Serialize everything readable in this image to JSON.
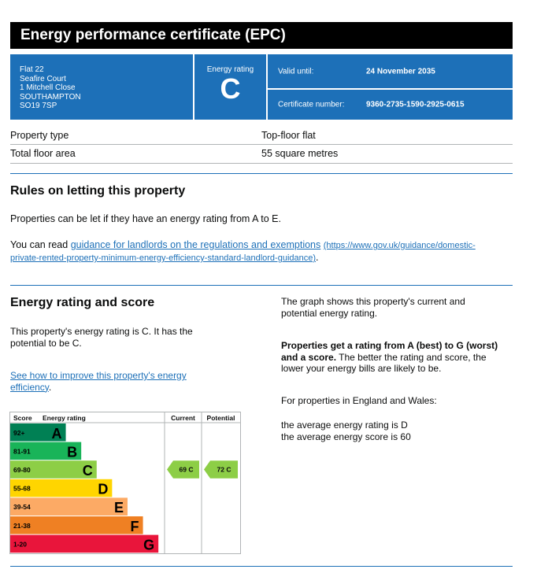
{
  "header": {
    "title": "Energy performance certificate (EPC)"
  },
  "address": {
    "lines": [
      "Flat 22",
      "Seafire Court",
      "1 Mitchell Close",
      "SOUTHAMPTON",
      "SO19 7SP"
    ]
  },
  "rating": {
    "label": "Energy rating",
    "value": "C"
  },
  "validity": {
    "label": "Valid until:",
    "value": "24 November 2035"
  },
  "certificate": {
    "label": "Certificate number:",
    "value": "9360-2735-1590-2925-0615"
  },
  "property": {
    "type_label": "Property type",
    "type_value": "Top-floor flat",
    "area_label": "Total floor area",
    "area_value": "55 square metres"
  },
  "rules": {
    "heading": "Rules on letting this property",
    "text": "Properties can be let if they have an energy rating from A to E.",
    "read_prefix": "You can read ",
    "guidance_link": "guidance for landlords on the regulations and exemptions",
    "guidance_url_line1": "(https://www.gov.uk/guidance/domestic-",
    "guidance_url_line2": "private-rented-property-minimum-energy-efficiency-standard-landlord-guidance)",
    "guidance_suffix": "."
  },
  "score": {
    "heading": "Energy rating and score",
    "text_line1": "This property's energy rating is C. It has the",
    "text_line2": "potential to be C.",
    "improve_link_line1": "See how to improve this property's energy",
    "improve_link_line2": "efficiency",
    "improve_suffix": "."
  },
  "side": {
    "graph_line1": "The graph shows this property's current and",
    "graph_line2": "potential energy rating.",
    "bold_line1": "Properties get a rating from A (best) to G (worst)",
    "bold_line2a": "and a score.",
    "bold_line2b": " The better the rating and score, the",
    "bold_line3": "lower your energy bills are likely to be.",
    "england": "For properties in England and Wales:",
    "avg_rating": "the average energy rating is D",
    "avg_score": "the average energy score is 60"
  },
  "chart_data": {
    "type": "bar",
    "headers": {
      "score": "Score",
      "rating": "Energy rating",
      "current": "Current",
      "potential": "Potential"
    },
    "bands": [
      {
        "range": "92+",
        "letter": "A",
        "color": "#008054",
        "text_color": "#000000",
        "width": 0.36
      },
      {
        "range": "81-91",
        "letter": "B",
        "color": "#19b459",
        "text_color": "#000000",
        "width": 0.46
      },
      {
        "range": "69-80",
        "letter": "C",
        "color": "#8dce46",
        "text_color": "#000000",
        "width": 0.56
      },
      {
        "range": "55-68",
        "letter": "D",
        "color": "#ffd500",
        "text_color": "#000000",
        "width": 0.66
      },
      {
        "range": "39-54",
        "letter": "E",
        "color": "#fcaa65",
        "text_color": "#000000",
        "width": 0.76
      },
      {
        "range": "21-38",
        "letter": "F",
        "color": "#ef8023",
        "text_color": "#000000",
        "width": 0.86
      },
      {
        "range": "1-20",
        "letter": "G",
        "color": "#e9153b",
        "text_color": "#000000",
        "width": 0.96
      }
    ],
    "current": {
      "score": 69,
      "letter": "C",
      "label": "69 C",
      "color": "#8dce46"
    },
    "potential": {
      "score": 72,
      "letter": "C",
      "label": "72 C",
      "color": "#8dce46"
    }
  }
}
